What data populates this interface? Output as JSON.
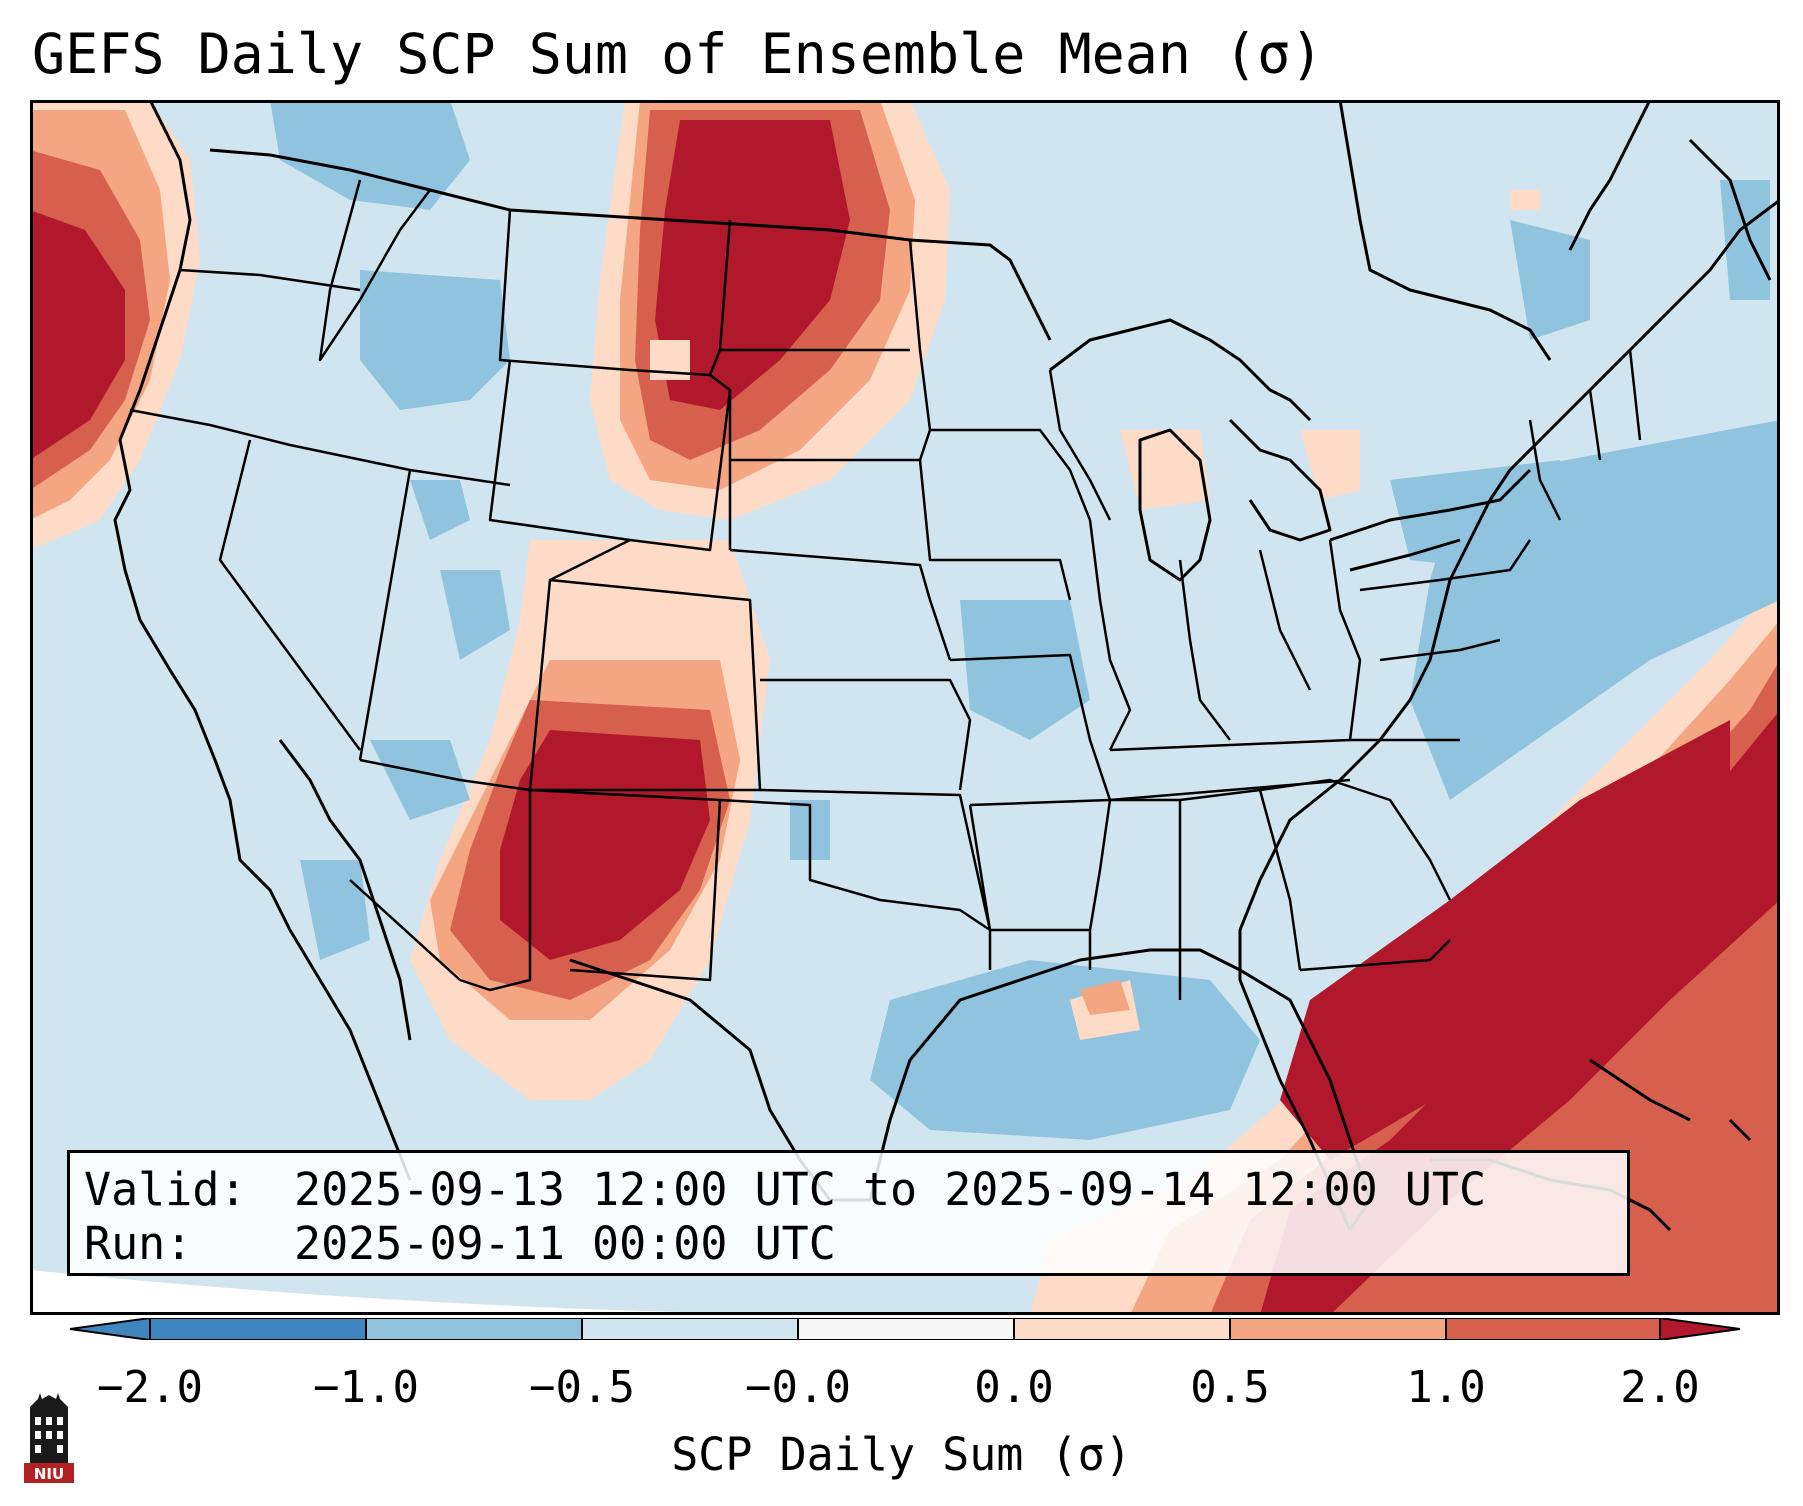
{
  "title": "GEFS Daily SCP Sum of Ensemble Mean (σ)",
  "info": {
    "valid_label": "Valid:",
    "valid_value": "2025-09-13 12:00 UTC to 2025-09-14 12:00 UTC",
    "run_label": "Run:",
    "run_value": "2025-09-11 00:00 UTC"
  },
  "colorbar": {
    "label": "SCP Daily Sum (σ)",
    "ticks": [
      "−2.0",
      "−1.0",
      "−0.5",
      "−0.0",
      "0.0",
      "0.5",
      "1.0",
      "2.0"
    ],
    "colors": [
      "#3f86bf",
      "#90c4de",
      "#d1e5f0",
      "#f7f7f7",
      "#fddbc7",
      "#f4a582",
      "#d6604d",
      "#b2182b"
    ]
  },
  "logo": {
    "text": "NIU"
  },
  "map": {
    "background_color": "#d1e5f0",
    "regions": [
      "Pacific Northwest offshore high",
      "Northern Plains high",
      "New Mexico high",
      "Western Atlantic high",
      "Gulf of Mexico low"
    ]
  }
}
